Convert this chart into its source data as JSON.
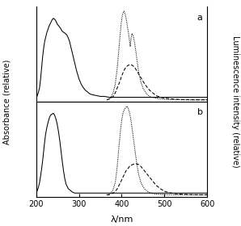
{
  "xlim": [
    200,
    600
  ],
  "xticks": [
    200,
    300,
    400,
    500,
    600
  ],
  "xlabel": "λ/nm",
  "ylabel_left": "Absorbance (relative)",
  "ylabel_right": "Luminescence intensity (relative)",
  "panel_a_label": "a",
  "panel_b_label": "b",
  "background_color": "#ffffff",
  "panel_a": {
    "uv_x": [
      200,
      202,
      205,
      208,
      210,
      212,
      215,
      218,
      220,
      222,
      225,
      228,
      230,
      232,
      235,
      237,
      240,
      243,
      245,
      248,
      250,
      252,
      255,
      258,
      260,
      262,
      265,
      268,
      270,
      272,
      275,
      278,
      280,
      285,
      290,
      295,
      300,
      305,
      310,
      315,
      320,
      325,
      330,
      340,
      350,
      360,
      370,
      380,
      390,
      400,
      420,
      440,
      460,
      480,
      500,
      520,
      540,
      560,
      580,
      600
    ],
    "uv_y": [
      0.02,
      0.04,
      0.08,
      0.14,
      0.22,
      0.32,
      0.48,
      0.6,
      0.66,
      0.7,
      0.76,
      0.8,
      0.83,
      0.85,
      0.88,
      0.9,
      0.92,
      0.91,
      0.9,
      0.87,
      0.85,
      0.84,
      0.82,
      0.8,
      0.78,
      0.77,
      0.76,
      0.75,
      0.74,
      0.73,
      0.7,
      0.66,
      0.62,
      0.52,
      0.42,
      0.32,
      0.24,
      0.18,
      0.14,
      0.11,
      0.09,
      0.07,
      0.06,
      0.05,
      0.04,
      0.04,
      0.03,
      0.03,
      0.03,
      0.03,
      0.03,
      0.03,
      0.03,
      0.03,
      0.03,
      0.03,
      0.03,
      0.03,
      0.03,
      0.03
    ],
    "dot77_x": [
      365,
      370,
      375,
      380,
      385,
      390,
      393,
      396,
      399,
      401,
      403,
      405,
      407,
      409,
      411,
      413,
      415,
      418,
      420,
      422,
      424,
      427,
      430,
      433,
      436,
      440,
      445,
      450,
      455,
      460,
      465,
      470,
      475,
      480,
      490,
      500,
      510,
      520,
      530,
      540,
      560,
      580,
      600
    ],
    "dot77_y": [
      0.0,
      0.01,
      0.03,
      0.08,
      0.18,
      0.38,
      0.55,
      0.72,
      0.87,
      0.94,
      0.98,
      1.0,
      0.98,
      0.95,
      0.9,
      0.84,
      0.78,
      0.68,
      0.6,
      0.7,
      0.75,
      0.72,
      0.65,
      0.55,
      0.44,
      0.3,
      0.2,
      0.13,
      0.09,
      0.06,
      0.04,
      0.03,
      0.025,
      0.02,
      0.012,
      0.008,
      0.005,
      0.004,
      0.003,
      0.002,
      0.001,
      0.001,
      0.001
    ],
    "dash298_x": [
      365,
      370,
      375,
      380,
      385,
      390,
      395,
      400,
      405,
      410,
      415,
      420,
      425,
      430,
      435,
      440,
      445,
      450,
      455,
      460,
      465,
      470,
      475,
      480,
      490,
      500,
      510,
      520,
      530,
      540,
      560,
      580,
      600
    ],
    "dash298_y": [
      0.0,
      0.01,
      0.02,
      0.04,
      0.08,
      0.14,
      0.2,
      0.27,
      0.33,
      0.37,
      0.39,
      0.4,
      0.39,
      0.37,
      0.33,
      0.29,
      0.25,
      0.21,
      0.17,
      0.14,
      0.11,
      0.09,
      0.07,
      0.05,
      0.03,
      0.02,
      0.015,
      0.01,
      0.007,
      0.005,
      0.002,
      0.001,
      0.001
    ]
  },
  "panel_b": {
    "uv_x": [
      200,
      202,
      205,
      208,
      210,
      213,
      216,
      219,
      222,
      225,
      228,
      231,
      234,
      237,
      240,
      243,
      246,
      249,
      252,
      255,
      258,
      261,
      264,
      267,
      270,
      275,
      280,
      285,
      290,
      295,
      300,
      305,
      310,
      320,
      330,
      340,
      350,
      360,
      370,
      380,
      390,
      400,
      420,
      440,
      460,
      480,
      500,
      520,
      540,
      560,
      580,
      600
    ],
    "uv_y": [
      0.02,
      0.04,
      0.08,
      0.14,
      0.2,
      0.3,
      0.42,
      0.56,
      0.68,
      0.76,
      0.82,
      0.87,
      0.9,
      0.91,
      0.92,
      0.9,
      0.86,
      0.8,
      0.72,
      0.62,
      0.5,
      0.38,
      0.27,
      0.18,
      0.12,
      0.07,
      0.05,
      0.03,
      0.02,
      0.02,
      0.02,
      0.02,
      0.02,
      0.02,
      0.02,
      0.02,
      0.02,
      0.02,
      0.02,
      0.02,
      0.02,
      0.02,
      0.02,
      0.02,
      0.02,
      0.02,
      0.02,
      0.02,
      0.02,
      0.02,
      0.02,
      0.02
    ],
    "dot77_x": [
      365,
      370,
      375,
      380,
      385,
      388,
      391,
      394,
      397,
      400,
      403,
      406,
      409,
      412,
      415,
      418,
      421,
      424,
      427,
      430,
      433,
      436,
      440,
      445,
      450,
      455,
      460,
      465,
      470,
      475,
      480,
      490,
      500,
      510,
      520,
      530,
      540,
      560,
      580,
      600
    ],
    "dot77_y": [
      0.0,
      0.01,
      0.02,
      0.06,
      0.14,
      0.25,
      0.4,
      0.57,
      0.72,
      0.84,
      0.92,
      0.96,
      0.98,
      1.0,
      0.98,
      0.93,
      0.86,
      0.76,
      0.65,
      0.54,
      0.43,
      0.33,
      0.22,
      0.14,
      0.09,
      0.06,
      0.04,
      0.025,
      0.018,
      0.013,
      0.009,
      0.005,
      0.003,
      0.002,
      0.001,
      0.001,
      0.001,
      0.001,
      0.001,
      0.001
    ],
    "dash298_x": [
      365,
      370,
      375,
      380,
      385,
      390,
      395,
      400,
      405,
      410,
      415,
      420,
      425,
      430,
      435,
      440,
      445,
      450,
      455,
      460,
      465,
      470,
      475,
      480,
      485,
      490,
      500,
      510,
      520,
      530,
      540,
      560,
      580,
      600
    ],
    "dash298_y": [
      0.0,
      0.0,
      0.01,
      0.02,
      0.04,
      0.07,
      0.12,
      0.17,
      0.22,
      0.27,
      0.3,
      0.33,
      0.34,
      0.35,
      0.35,
      0.34,
      0.32,
      0.29,
      0.26,
      0.23,
      0.2,
      0.17,
      0.14,
      0.11,
      0.09,
      0.07,
      0.04,
      0.025,
      0.015,
      0.01,
      0.007,
      0.003,
      0.001,
      0.001
    ]
  }
}
